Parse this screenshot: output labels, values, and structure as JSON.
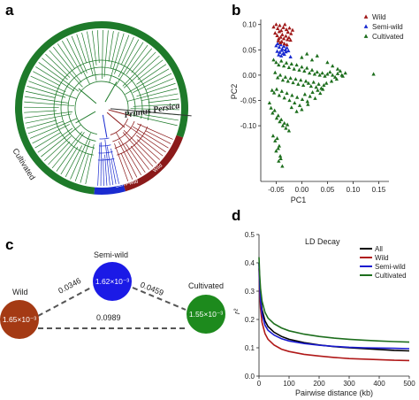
{
  "panels": {
    "a": {
      "letter": "a",
      "species_label": "Prunus Persica",
      "ring_labels": {
        "cultivated": "Cultivated",
        "semi_wild": "Semi-wild",
        "wild": "Wild"
      },
      "colors": {
        "cultivated": "#1e7a2a",
        "semi_wild": "#1a2bd0",
        "wild": "#8b1a1a"
      }
    },
    "b": {
      "letter": "b"
    },
    "c": {
      "letter": "c",
      "nodes": [
        {
          "id": "wild",
          "name": "Wild",
          "value": "1.65×10⁻³",
          "color": "#a43a14"
        },
        {
          "id": "semi",
          "name": "Semi-wild",
          "value": "1.62×10⁻³",
          "color": "#1b1ae6"
        },
        {
          "id": "cult",
          "name": "Cultivated",
          "value": "1.55×10⁻³",
          "color": "#1d8a1d"
        }
      ],
      "edges": [
        {
          "from": "wild",
          "to": "semi",
          "value": "0.0346"
        },
        {
          "from": "semi",
          "to": "cult",
          "value": "0.0459"
        },
        {
          "from": "wild",
          "to": "cult",
          "value": "0.0989"
        }
      ]
    },
    "d": {
      "letter": "d",
      "panel_title": "LD Decay"
    }
  },
  "chart_data": [
    {
      "type": "scatter",
      "panel": "b",
      "xlabel": "PC1",
      "ylabel": "PC2",
      "xlim": [
        -0.08,
        0.17
      ],
      "ylim": [
        -0.21,
        0.11
      ],
      "xticks": [
        "-0.05",
        "0.00",
        "0.05",
        "0.10",
        "0.15"
      ],
      "xtick_values": [
        -0.05,
        0.0,
        0.05,
        0.1,
        0.15
      ],
      "yticks": [
        "0.10",
        "0.05",
        "0.00",
        "-0.05",
        "-0.10"
      ],
      "ytick_values": [
        0.1,
        0.05,
        0.0,
        -0.05,
        -0.1
      ],
      "legend_position": "top-right",
      "series": [
        {
          "name": "Wild",
          "color": "#a01818",
          "marker": "triangle",
          "x": [
            -0.055,
            -0.05,
            -0.047,
            -0.043,
            -0.04,
            -0.036,
            -0.033,
            -0.03,
            -0.027,
            -0.024,
            -0.021,
            -0.018,
            -0.052,
            -0.048,
            -0.044,
            -0.041,
            -0.038,
            -0.035,
            -0.031,
            -0.028,
            -0.025,
            -0.022,
            -0.046,
            -0.042,
            -0.039,
            -0.034,
            -0.029,
            -0.045
          ],
          "y": [
            0.095,
            0.1,
            0.092,
            0.098,
            0.088,
            0.094,
            0.1,
            0.09,
            0.085,
            0.093,
            0.082,
            0.089,
            0.083,
            0.078,
            0.086,
            0.075,
            0.08,
            0.072,
            0.077,
            0.07,
            0.074,
            0.069,
            0.068,
            0.064,
            0.066,
            0.062,
            0.06,
            0.072
          ]
        },
        {
          "name": "Semi-wild",
          "color": "#1a2bd0",
          "marker": "triangle",
          "x": [
            -0.05,
            -0.047,
            -0.044,
            -0.041,
            -0.038,
            -0.035,
            -0.032,
            -0.029,
            -0.026,
            -0.048,
            -0.043,
            -0.039,
            -0.036,
            -0.031,
            -0.045,
            -0.04,
            -0.034,
            -0.022
          ],
          "y": [
            0.058,
            0.062,
            0.055,
            0.06,
            0.052,
            0.057,
            0.05,
            0.054,
            0.048,
            0.047,
            0.045,
            0.049,
            0.043,
            0.046,
            0.04,
            0.038,
            0.041,
            0.036
          ]
        },
        {
          "name": "Cultivated",
          "color": "#1d6e1d",
          "marker": "triangle",
          "x": [
            -0.055,
            -0.05,
            -0.045,
            -0.04,
            -0.035,
            -0.03,
            -0.025,
            -0.02,
            -0.015,
            -0.01,
            -0.005,
            0.0,
            0.005,
            0.01,
            0.015,
            0.02,
            0.025,
            0.03,
            0.035,
            0.04,
            0.045,
            0.05,
            0.055,
            0.06,
            0.065,
            0.07,
            0.075,
            0.08,
            -0.052,
            -0.047,
            -0.042,
            -0.037,
            -0.032,
            -0.027,
            -0.022,
            -0.017,
            -0.012,
            -0.007,
            -0.002,
            0.003,
            0.008,
            0.013,
            0.018,
            0.023,
            0.028,
            0.033,
            0.038,
            0.043,
            0.048,
            -0.058,
            -0.054,
            -0.049,
            -0.044,
            -0.039,
            -0.034,
            -0.029,
            -0.024,
            -0.019,
            -0.014,
            -0.009,
            -0.004,
            0.001,
            0.006,
            0.011,
            0.016,
            0.021,
            0.026,
            0.031,
            0.036,
            0.041,
            -0.063,
            -0.06,
            -0.057,
            -0.053,
            -0.049,
            -0.046,
            -0.043,
            -0.04,
            -0.037,
            -0.034,
            -0.031,
            -0.028,
            -0.025,
            -0.056,
            -0.052,
            -0.048,
            -0.044,
            -0.05,
            -0.046,
            -0.042,
            -0.045,
            -0.041,
            -0.038,
            0.0,
            0.01,
            0.02,
            0.03,
            0.05,
            0.06,
            0.07,
            0.058,
            0.068,
            0.078,
            0.085,
            0.14,
            -0.02,
            -0.01,
            0.0,
            0.012
          ],
          "y": [
            0.03,
            0.025,
            0.02,
            0.028,
            0.018,
            0.024,
            0.015,
            0.022,
            0.012,
            0.02,
            0.01,
            0.016,
            0.008,
            0.014,
            0.004,
            0.01,
            0.002,
            0.006,
            0.0,
            0.004,
            -0.002,
            0.002,
            0.006,
            0.0,
            -0.004,
            0.003,
            0.008,
            -0.002,
            0.005,
            -0.005,
            0.0,
            -0.01,
            -0.004,
            -0.012,
            -0.006,
            -0.015,
            -0.008,
            -0.018,
            -0.01,
            -0.02,
            -0.012,
            -0.016,
            -0.022,
            -0.014,
            -0.024,
            -0.018,
            -0.026,
            -0.02,
            -0.016,
            -0.03,
            -0.035,
            -0.028,
            -0.04,
            -0.032,
            -0.045,
            -0.036,
            -0.05,
            -0.04,
            -0.055,
            -0.044,
            -0.06,
            -0.048,
            -0.038,
            -0.052,
            -0.042,
            -0.034,
            -0.046,
            -0.03,
            -0.036,
            -0.028,
            -0.055,
            -0.065,
            -0.075,
            -0.07,
            -0.085,
            -0.08,
            -0.092,
            -0.088,
            -0.1,
            -0.095,
            -0.105,
            -0.098,
            -0.11,
            -0.12,
            -0.13,
            -0.125,
            -0.14,
            -0.15,
            -0.145,
            -0.16,
            -0.17,
            -0.165,
            -0.18,
            0.035,
            0.042,
            0.03,
            0.038,
            0.025,
            0.018,
            0.012,
            -0.012,
            -0.008,
            0.0,
            0.004,
            0.002,
            -0.064,
            -0.072,
            -0.068,
            -0.058
          ]
        }
      ]
    },
    {
      "type": "line",
      "panel": "d",
      "title": "LD Decay",
      "xlabel": "Pairwise distance (kb)",
      "ylabel": "r²",
      "xlim": [
        0,
        500
      ],
      "ylim": [
        0.0,
        0.5
      ],
      "xticks": [
        "0",
        "100",
        "200",
        "300",
        "400",
        "500"
      ],
      "xtick_values": [
        0,
        100,
        200,
        300,
        400,
        500
      ],
      "yticks": [
        "0.0",
        "0.1",
        "0.2",
        "0.3",
        "0.4",
        "0.5"
      ],
      "ytick_values": [
        0.0,
        0.1,
        0.2,
        0.3,
        0.4,
        0.5
      ],
      "legend_position": "top-right",
      "x": [
        0,
        2,
        5,
        10,
        20,
        30,
        50,
        75,
        100,
        150,
        200,
        250,
        300,
        350,
        400,
        450,
        500
      ],
      "series": [
        {
          "name": "All",
          "color": "#000000",
          "values": [
            0.4,
            0.33,
            0.28,
            0.235,
            0.195,
            0.175,
            0.155,
            0.14,
            0.13,
            0.118,
            0.11,
            0.104,
            0.1,
            0.097,
            0.094,
            0.091,
            0.089
          ]
        },
        {
          "name": "Wild",
          "color": "#b01818",
          "values": [
            0.38,
            0.3,
            0.24,
            0.19,
            0.15,
            0.13,
            0.11,
            0.095,
            0.087,
            0.077,
            0.071,
            0.066,
            0.062,
            0.06,
            0.058,
            0.056,
            0.055
          ]
        },
        {
          "name": "Semi-wild",
          "color": "#1a1ad0",
          "values": [
            0.4,
            0.32,
            0.27,
            0.22,
            0.18,
            0.162,
            0.145,
            0.132,
            0.124,
            0.115,
            0.109,
            0.105,
            0.102,
            0.1,
            0.099,
            0.098,
            0.097
          ]
        },
        {
          "name": "Cultivated",
          "color": "#1d6e1d",
          "values": [
            0.42,
            0.36,
            0.31,
            0.265,
            0.225,
            0.205,
            0.185,
            0.17,
            0.16,
            0.148,
            0.14,
            0.134,
            0.13,
            0.127,
            0.124,
            0.122,
            0.12
          ]
        }
      ]
    }
  ]
}
